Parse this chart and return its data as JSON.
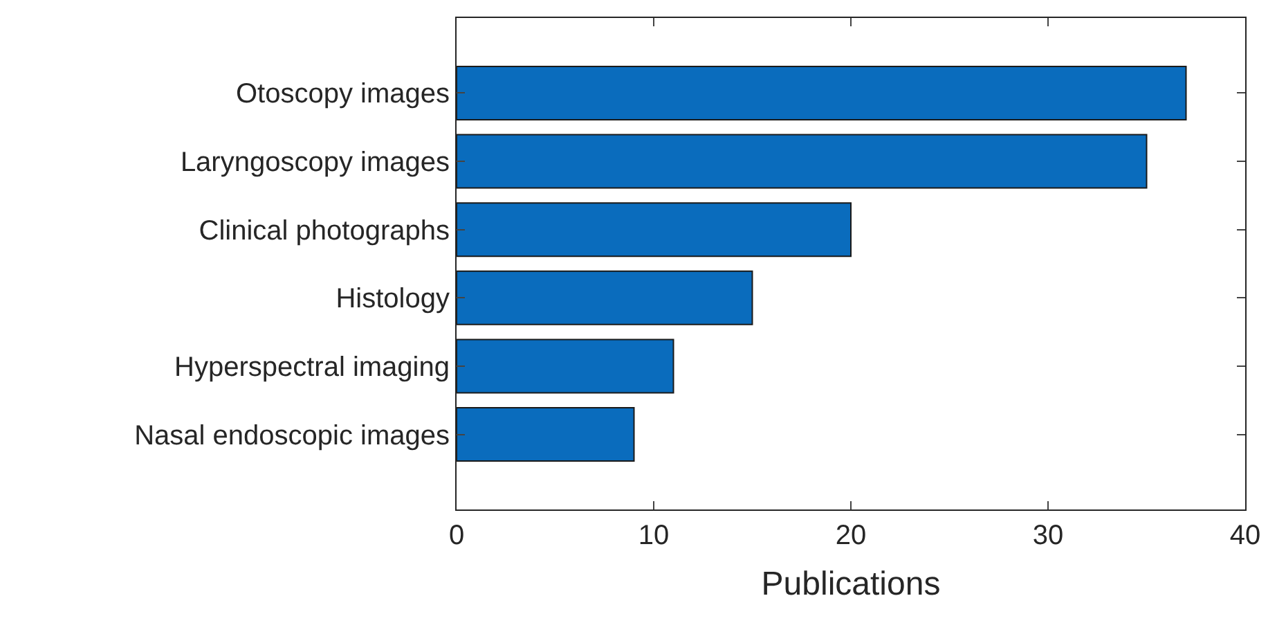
{
  "chart_data": {
    "type": "bar",
    "orientation": "horizontal",
    "xlabel": "Publications",
    "categories": [
      "Otoscopy images",
      "Laryngoscopy images",
      "Clinical photographs",
      "Histology",
      "Hyperspectral imaging",
      "Nasal endoscopic images"
    ],
    "values": [
      37,
      35,
      20,
      15,
      11,
      9
    ],
    "color": "#0a6cbd",
    "xlim": [
      0,
      40
    ],
    "xticks": [
      0,
      10,
      20,
      30,
      40
    ]
  }
}
